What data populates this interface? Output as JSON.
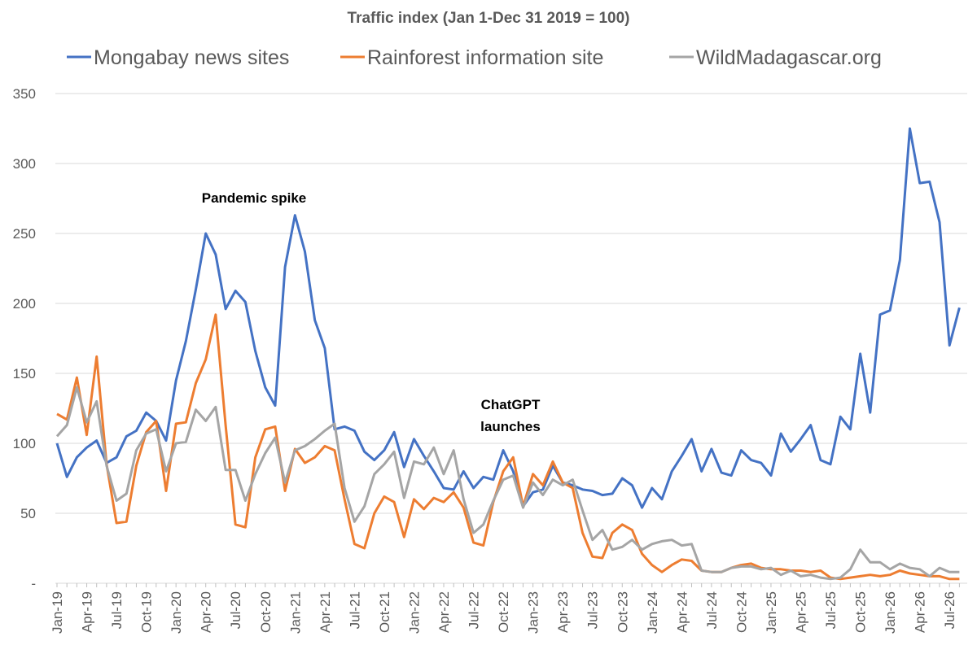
{
  "chart_data": {
    "type": "line",
    "title": "Traffic index (Jan 1-Dec 31 2019 = 100)",
    "annotations": [
      {
        "lines": [
          "Pandemic spike"
        ]
      },
      {
        "lines": [
          "ChatGPT",
          "launches"
        ]
      }
    ],
    "categories": [
      "Jan-19",
      null,
      null,
      "Apr-19",
      null,
      null,
      "Jul-19",
      null,
      null,
      "Oct-19",
      null,
      null,
      "Jan-20",
      null,
      null,
      "Apr-20",
      null,
      null,
      "Jul-20",
      null,
      null,
      "Oct-20",
      null,
      null,
      "Jan-21",
      null,
      null,
      "Apr-21",
      null,
      null,
      "Jul-21",
      null,
      null,
      "Oct-21",
      null,
      null,
      "Jan-22",
      null,
      null,
      "Apr-22",
      null,
      null,
      "Jul-22",
      null,
      null,
      "Oct-22",
      null,
      null,
      "Jan-23",
      null,
      null,
      "Apr-23",
      null,
      null,
      "Jul-23",
      null,
      null,
      "Oct-23",
      null,
      null,
      "Jan-24",
      null,
      null,
      "Apr-24",
      null,
      null,
      "Jul-24",
      null,
      null,
      "Oct-24",
      null,
      null,
      "Jan-25",
      null,
      null,
      "Apr-25",
      null,
      null,
      "Jul-25",
      null,
      null,
      "Oct-25",
      null,
      null,
      "Jan-26",
      null,
      null,
      "Apr-26",
      null,
      null,
      "Jul-26",
      null
    ],
    "series": [
      {
        "name": "Mongabay news sites",
        "color": "#4472c4",
        "values": [
          100,
          76,
          90,
          97,
          102,
          86,
          90,
          105,
          109,
          122,
          116,
          102,
          145,
          173,
          210,
          250,
          235,
          196,
          209,
          201,
          166,
          140,
          127,
          226,
          263,
          237,
          188,
          168,
          110,
          112,
          109,
          94,
          88,
          95,
          108,
          83,
          103,
          91,
          80,
          68,
          67,
          80,
          68,
          76,
          74,
          95,
          80,
          55,
          65,
          67,
          84,
          72,
          70,
          67,
          66,
          63,
          64,
          75,
          70,
          54,
          68,
          60,
          80,
          91,
          103,
          80,
          96,
          79,
          77,
          95,
          88,
          86,
          77,
          107,
          94,
          103,
          113,
          88,
          85,
          119,
          110,
          164,
          122,
          192,
          195,
          231,
          325,
          286,
          287,
          258,
          170,
          197
        ]
      },
      {
        "name": "Rainforest information site",
        "color": "#ed7d31",
        "values": [
          121,
          117,
          147,
          106,
          162,
          85,
          43,
          44,
          84,
          108,
          116,
          66,
          114,
          115,
          143,
          160,
          192,
          113,
          42,
          40,
          90,
          110,
          112,
          66,
          96,
          86,
          90,
          98,
          95,
          60,
          28,
          25,
          50,
          62,
          58,
          33,
          60,
          53,
          61,
          58,
          65,
          54,
          29,
          27,
          58,
          80,
          90,
          55,
          78,
          70,
          87,
          72,
          68,
          36,
          19,
          18,
          36,
          42,
          38,
          21,
          13,
          8,
          13,
          17,
          16,
          9,
          8,
          8,
          11,
          13,
          14,
          11,
          10,
          10,
          9,
          9,
          8,
          9,
          4,
          3,
          4,
          5,
          6,
          5,
          6,
          9,
          7,
          6,
          5,
          5,
          3,
          3
        ]
      },
      {
        "name": "WildMadagascar.org",
        "color": "#a5a5a5",
        "values": [
          105,
          113,
          140,
          115,
          130,
          84,
          59,
          64,
          95,
          107,
          110,
          80,
          100,
          101,
          124,
          116,
          126,
          81,
          81,
          59,
          78,
          93,
          104,
          72,
          95,
          98,
          103,
          109,
          114,
          68,
          44,
          55,
          78,
          85,
          94,
          61,
          87,
          85,
          97,
          78,
          95,
          60,
          36,
          42,
          59,
          74,
          77,
          54,
          72,
          63,
          74,
          70,
          74,
          52,
          31,
          38,
          24,
          26,
          31,
          24,
          28,
          30,
          31,
          27,
          28,
          9,
          8,
          8,
          11,
          12,
          12,
          10,
          11,
          6,
          9,
          5,
          6,
          4,
          3,
          4,
          10,
          24,
          15,
          15,
          10,
          14,
          11,
          10,
          5,
          11,
          8,
          8
        ]
      }
    ],
    "ylim": [
      0,
      350
    ],
    "yticks": [
      {
        "value": 0,
        "label": "-"
      },
      50,
      100,
      150,
      200,
      250,
      300,
      350
    ],
    "grid": true,
    "legend": "top"
  }
}
